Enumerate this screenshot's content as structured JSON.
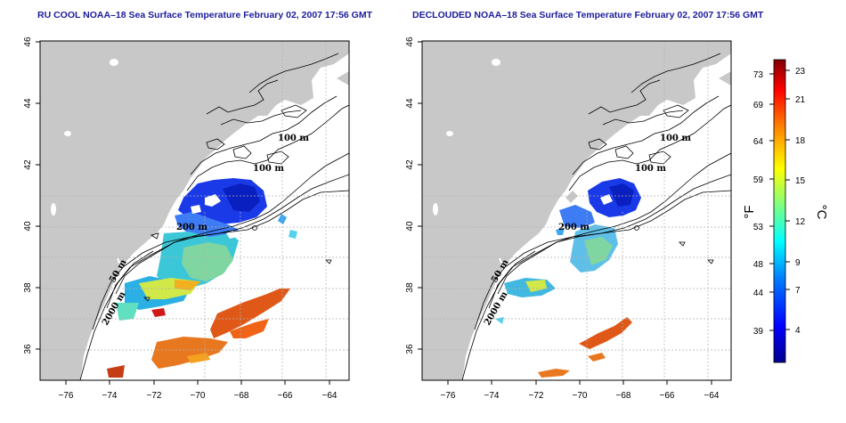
{
  "panels": [
    {
      "title": "RU COOL NOAA–18 Sea Surface Temperature February 02, 2007 17:56 GMT",
      "variant": "raw"
    },
    {
      "title": "DECLOUDED NOAA–18 Sea Surface Temperature February 02, 2007 17:56 GMT",
      "variant": "declouded"
    }
  ],
  "axes": {
    "x_range": [
      -77,
      -63
    ],
    "y_range": [
      35,
      46
    ],
    "x_ticks": [
      "−76",
      "−74",
      "−72",
      "−70",
      "−68",
      "−66",
      "−64"
    ],
    "y_ticks": [
      "36",
      "38",
      "40",
      "42",
      "44",
      "46"
    ]
  },
  "contour_labels": [
    "100 m",
    "100 m",
    "200 m",
    "50 m",
    "2000 m"
  ],
  "colorbar": {
    "fahrenheit_ticks": [
      "73",
      "69",
      "64",
      "59",
      "53",
      "48",
      "44",
      "39"
    ],
    "celsius_ticks": [
      "23",
      "21",
      "18",
      "15",
      "12",
      "9",
      "7",
      "4"
    ],
    "fahrenheit_unit": "°F",
    "celsius_unit": "°C",
    "colors": [
      "#00008f",
      "#0000ff",
      "#0080ff",
      "#00ffff",
      "#80ff80",
      "#ffff00",
      "#ff8000",
      "#ff0000",
      "#800000"
    ]
  },
  "colors": {
    "land": "#c8c8c8",
    "ocean": "#ffffff",
    "title": "#1c1c9c"
  }
}
